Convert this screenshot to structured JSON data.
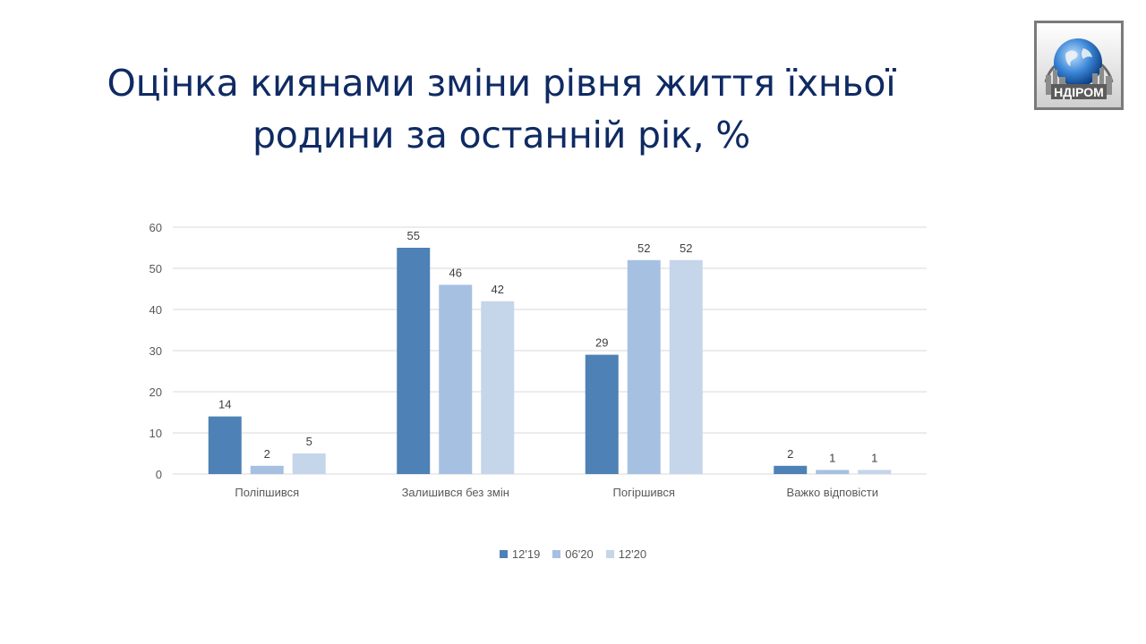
{
  "slide": {
    "title_line1": "Оцінка киянами зміни рівня життя їхньої",
    "title_line2": "родини за останній рік, %",
    "logo_text": "НДІРОМ"
  },
  "chart_data": {
    "type": "bar",
    "title": "Оцінка киянами зміни рівня життя їхньої родини за останній рік, %",
    "categories": [
      "Поліпшився",
      "Залишився без змін",
      "Погіршився",
      "Важко відповісти"
    ],
    "series": [
      {
        "name": "12'19",
        "values": [
          14,
          55,
          29,
          2
        ],
        "color": "#4e81b5"
      },
      {
        "name": "06'20",
        "values": [
          2,
          46,
          52,
          1
        ],
        "color": "#a6c0e2"
      },
      {
        "name": "12'20",
        "values": [
          5,
          42,
          52,
          1
        ],
        "color": "#c5d5ea"
      }
    ],
    "ylim": [
      0,
      60
    ],
    "yticks": [
      0,
      10,
      20,
      30,
      40,
      50,
      60
    ],
    "grid": true,
    "legend": "bottom",
    "xlabel": "",
    "ylabel": ""
  }
}
